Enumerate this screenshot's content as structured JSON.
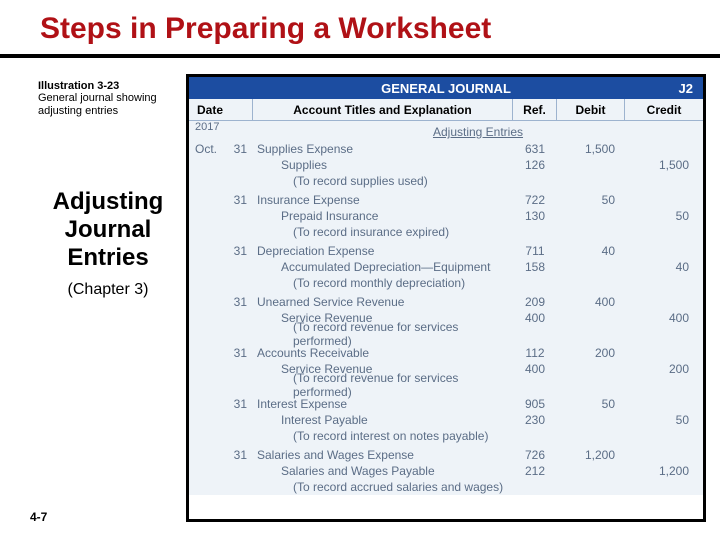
{
  "title": {
    "text": "Steps in Preparing a Worksheet",
    "color": "#b01116",
    "rule_color": "#000000"
  },
  "illustration": {
    "label": "Illustration 3-23",
    "desc": "General journal showing adjusting entries"
  },
  "section": {
    "heading_l1": "Adjusting",
    "heading_l2": "Journal",
    "heading_l3": "Entries",
    "chapter": "(Chapter 3)"
  },
  "page_number": "4-7",
  "journal": {
    "header_bg": "#1c4da1",
    "header_fg": "#ffffff",
    "body_bg": "#eef3f8",
    "grid_color": "#9db3cf",
    "text_color": "#5b6d86",
    "title": "GENERAL JOURNAL",
    "page_code": "J2",
    "columns": {
      "date": "Date",
      "account": "Account Titles and Explanation",
      "ref": "Ref.",
      "debit": "Debit",
      "credit": "Credit"
    },
    "section_label": "Adjusting Entries",
    "year": "2017",
    "entries": [
      {
        "month": "Oct.",
        "day": "31",
        "debit_acct": "Supplies Expense",
        "debit_ref": "631",
        "debit_amt": "1,500",
        "credit_acct": "Supplies",
        "credit_ref": "126",
        "credit_amt": "1,500",
        "explain": "(To record supplies used)"
      },
      {
        "month": "",
        "day": "31",
        "debit_acct": "Insurance Expense",
        "debit_ref": "722",
        "debit_amt": "50",
        "credit_acct": "Prepaid Insurance",
        "credit_ref": "130",
        "credit_amt": "50",
        "explain": "(To record insurance expired)"
      },
      {
        "month": "",
        "day": "31",
        "debit_acct": "Depreciation Expense",
        "debit_ref": "711",
        "debit_amt": "40",
        "credit_acct": "Accumulated Depreciation—Equipment",
        "credit_ref": "158",
        "credit_amt": "40",
        "explain": "(To record monthly depreciation)"
      },
      {
        "month": "",
        "day": "31",
        "debit_acct": "Unearned Service Revenue",
        "debit_ref": "209",
        "debit_amt": "400",
        "credit_acct": "Service Revenue",
        "credit_ref": "400",
        "credit_amt": "400",
        "explain": "(To record revenue for services performed)"
      },
      {
        "month": "",
        "day": "31",
        "debit_acct": "Accounts Receivable",
        "debit_ref": "112",
        "debit_amt": "200",
        "credit_acct": "Service Revenue",
        "credit_ref": "400",
        "credit_amt": "200",
        "explain": "(To record revenue for services performed)"
      },
      {
        "month": "",
        "day": "31",
        "debit_acct": "Interest Expense",
        "debit_ref": "905",
        "debit_amt": "50",
        "credit_acct": "Interest Payable",
        "credit_ref": "230",
        "credit_amt": "50",
        "explain": "(To record interest on notes payable)"
      },
      {
        "month": "",
        "day": "31",
        "debit_acct": "Salaries and Wages Expense",
        "debit_ref": "726",
        "debit_amt": "1,200",
        "credit_acct": "Salaries and Wages Payable",
        "credit_ref": "212",
        "credit_amt": "1,200",
        "explain": "(To record accrued salaries and wages)"
      }
    ]
  }
}
